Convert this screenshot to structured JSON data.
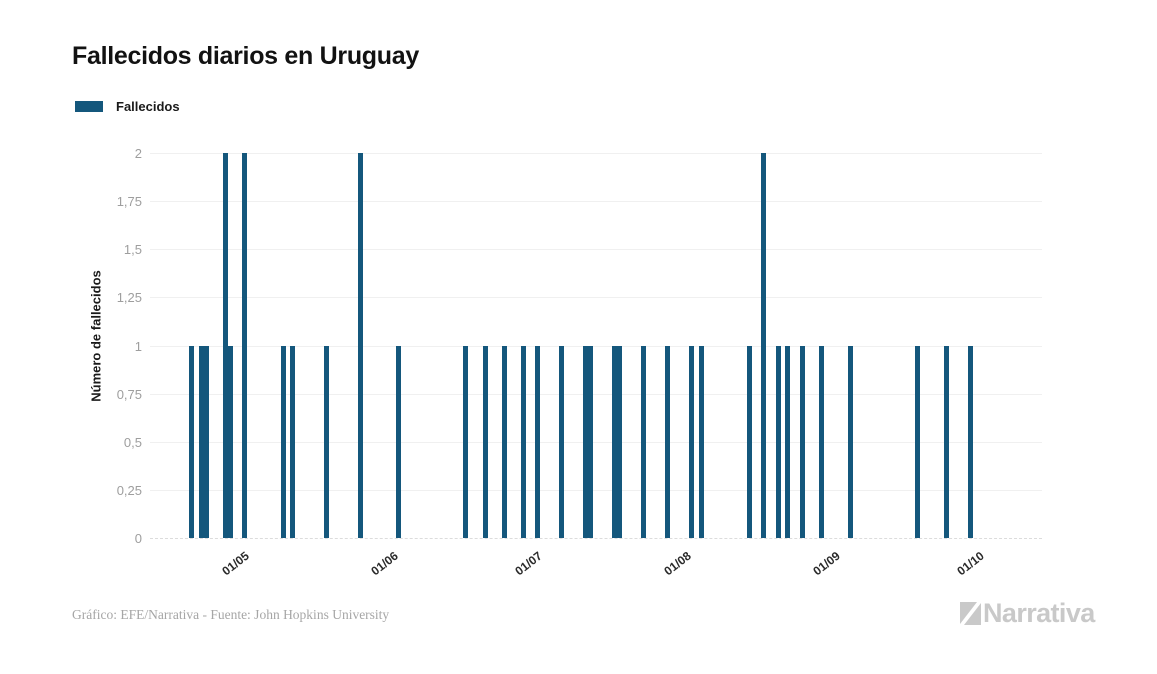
{
  "chart_data": {
    "type": "bar",
    "title": "Fallecidos diarios en Uruguay",
    "xlabel": "",
    "ylabel": "Número de fallecidos",
    "ylim": [
      0,
      2
    ],
    "grid": true,
    "legend_position": "top-left",
    "bar_color": "#14577C",
    "x_ticks": [
      "01/05",
      "01/06",
      "01/07",
      "01/08",
      "01/09",
      "01/10"
    ],
    "y_tick_labels": [
      "0",
      "0,25",
      "0,5",
      "0,75",
      "1",
      "1,25",
      "1,5",
      "1,75",
      "2"
    ],
    "y_tick_values": [
      0,
      0.25,
      0.5,
      0.75,
      1,
      1.25,
      1.5,
      1.75,
      2
    ],
    "series": [
      {
        "name": "Fallecidos",
        "points": [
          {
            "date": "21/04",
            "value": 1
          },
          {
            "date": "23/04",
            "value": 1
          },
          {
            "date": "24/04",
            "value": 1
          },
          {
            "date": "28/04",
            "value": 2
          },
          {
            "date": "29/04",
            "value": 1
          },
          {
            "date": "02/05",
            "value": 2
          },
          {
            "date": "10/05",
            "value": 1
          },
          {
            "date": "12/05",
            "value": 1
          },
          {
            "date": "19/05",
            "value": 1
          },
          {
            "date": "26/05",
            "value": 2
          },
          {
            "date": "03/06",
            "value": 1
          },
          {
            "date": "17/06",
            "value": 1
          },
          {
            "date": "21/06",
            "value": 1
          },
          {
            "date": "25/06",
            "value": 1
          },
          {
            "date": "29/06",
            "value": 1
          },
          {
            "date": "02/07",
            "value": 1
          },
          {
            "date": "07/07",
            "value": 1
          },
          {
            "date": "12/07",
            "value": 1
          },
          {
            "date": "13/07",
            "value": 1
          },
          {
            "date": "18/07",
            "value": 1
          },
          {
            "date": "19/07",
            "value": 1
          },
          {
            "date": "24/07",
            "value": 1
          },
          {
            "date": "29/07",
            "value": 1
          },
          {
            "date": "03/08",
            "value": 1
          },
          {
            "date": "05/08",
            "value": 1
          },
          {
            "date": "15/08",
            "value": 1
          },
          {
            "date": "18/08",
            "value": 2
          },
          {
            "date": "21/08",
            "value": 1
          },
          {
            "date": "23/08",
            "value": 1
          },
          {
            "date": "26/08",
            "value": 1
          },
          {
            "date": "30/08",
            "value": 1
          },
          {
            "date": "05/09",
            "value": 1
          },
          {
            "date": "19/09",
            "value": 1
          },
          {
            "date": "25/09",
            "value": 1
          },
          {
            "date": "30/09",
            "value": 1
          }
        ]
      }
    ]
  },
  "footer": {
    "credit": "Gráfico: EFE/Narrativa - Fuente: John Hopkins University",
    "brand_text": "Narrativa"
  },
  "colors": {
    "bar": "#14577C",
    "grid": "#f0f0f0",
    "baseline": "#dcdcdc",
    "y_tick_text": "#9e9e9e",
    "brand": "#c9c9c9"
  }
}
